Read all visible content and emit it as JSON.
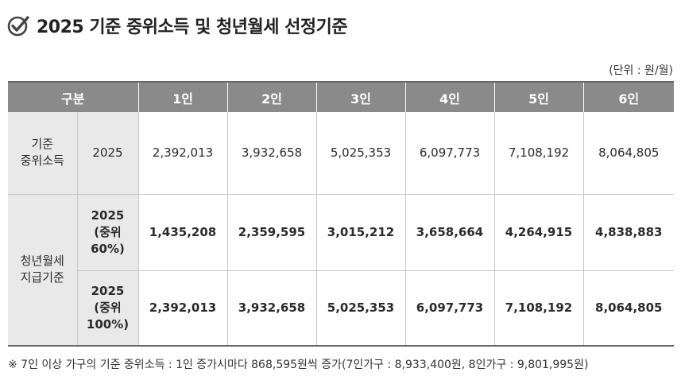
{
  "title": "2025 기준 중위소득 및 청년월세 선정기준",
  "icon": "check-circle-icon",
  "unit_note": "(단위 : 원/월)",
  "table": {
    "headers": [
      "구분",
      "1인",
      "2인",
      "3인",
      "4인",
      "5인",
      "6인"
    ],
    "median_income": {
      "category": "기준\n중위소득",
      "year": "2025",
      "values": [
        "2,392,013",
        "3,932,658",
        "5,025,353",
        "6,097,773",
        "7,108,192",
        "8,064,805"
      ]
    },
    "youth_rent": {
      "category": "청년월세\n지급기준",
      "rows": [
        {
          "label": "2025\n(중위\n60%)",
          "values": [
            "1,435,208",
            "2,359,595",
            "3,015,212",
            "3,658,664",
            "4,264,915",
            "4,838,883"
          ]
        },
        {
          "label": "2025\n(중위\n100%)",
          "values": [
            "2,392,013",
            "3,932,658",
            "5,025,353",
            "6,097,773",
            "7,108,192",
            "8,064,805"
          ]
        }
      ]
    }
  },
  "footnote": "※ 7인 이상 가구의 기준 중위소득 : 1인 증가시마다 868,595원씩 증가(7인가구 : 8,933,400원, 8인가구 : 9,801,995원)"
}
